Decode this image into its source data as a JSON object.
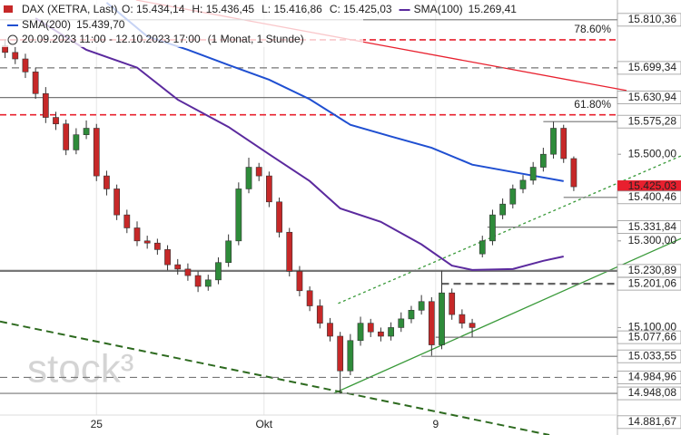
{
  "chart_data": {
    "type": "candlestick",
    "title": "DAX (XETRA, Last)",
    "ohlc_labels": [
      "O: 15.434,14",
      "H: 15.436,45",
      "L: 15.416,86",
      "C: 15.425,03"
    ],
    "period": "20.09.2023 11:00 - 12.10.2023 17:00",
    "period_note": "(1 Monat, 1 Stunde)",
    "watermark": "stock³",
    "xlim": [
      -0.5,
      60.3
    ],
    "xticks": [
      {
        "value": 9,
        "label": "25"
      },
      {
        "value": 25.5,
        "label": "Okt"
      },
      {
        "value": 42.4,
        "label": "9"
      }
    ],
    "ylim": [
      14852,
      15856
    ],
    "yticks": [
      {
        "value": 15100,
        "label": "15.100,00"
      },
      {
        "value": 15300,
        "label": "15.300,00"
      },
      {
        "value": 15500,
        "label": "15.500,00"
      }
    ],
    "up_color": "#2e8b3a",
    "down_color": "#c62828",
    "open": [
      15750,
      15735,
      15720,
      15690,
      15640,
      15585,
      15570,
      15510,
      15545,
      15560,
      15450,
      15420,
      15360,
      15330,
      15300,
      15295,
      15280,
      15245,
      15235,
      15220,
      15195,
      15210,
      15250,
      15300,
      15420,
      15470,
      15450,
      15390,
      15320,
      15230,
      15185,
      15150,
      15110,
      15080,
      15000,
      15070,
      15110,
      15090,
      15080,
      15100,
      15120,
      15140,
      15160,
      15060,
      15180,
      15130,
      15110,
      15270,
      15300,
      15360,
      15385,
      15420,
      15440,
      15470,
      15500,
      15560,
      15490
    ],
    "high": [
      15765,
      15748,
      15732,
      15700,
      15655,
      15598,
      15580,
      15560,
      15578,
      15570,
      15462,
      15430,
      15372,
      15345,
      15312,
      15305,
      15290,
      15258,
      15248,
      15230,
      15222,
      15262,
      15315,
      15435,
      15492,
      15480,
      15460,
      15400,
      15330,
      15242,
      15195,
      15165,
      15122,
      15090,
      15085,
      15125,
      15120,
      15100,
      15112,
      15135,
      15150,
      15175,
      15170,
      15231,
      15190,
      15142,
      15120,
      15312,
      15372,
      15398,
      15430,
      15452,
      15482,
      15515,
      15575,
      15568,
      15495
    ],
    "low": [
      15722,
      15708,
      15676,
      15628,
      15572,
      15556,
      15498,
      15500,
      15535,
      15438,
      15405,
      15348,
      15318,
      15288,
      15282,
      15268,
      15232,
      15222,
      15208,
      15182,
      15185,
      15200,
      15240,
      15290,
      15410,
      15438,
      15378,
      15308,
      15218,
      15172,
      15138,
      15098,
      15068,
      14948,
      14990,
      15058,
      15078,
      15068,
      15070,
      15090,
      15110,
      15130,
      15035,
      15050,
      15118,
      15098,
      15078,
      15262,
      15290,
      15350,
      15375,
      15410,
      15430,
      15460,
      15490,
      15480,
      15415
    ],
    "close": [
      15735,
      15720,
      15690,
      15640,
      15585,
      15570,
      15510,
      15545,
      15560,
      15450,
      15420,
      15360,
      15330,
      15300,
      15295,
      15280,
      15245,
      15235,
      15220,
      15195,
      15210,
      15250,
      15300,
      15420,
      15470,
      15450,
      15390,
      15320,
      15230,
      15185,
      15150,
      15110,
      15080,
      15000,
      15070,
      15110,
      15090,
      15080,
      15100,
      15120,
      15140,
      15160,
      15060,
      15180,
      15130,
      15110,
      15100,
      15300,
      15360,
      15385,
      15420,
      15440,
      15470,
      15500,
      15560,
      15490,
      15425
    ],
    "series": [
      {
        "name": "SMA(100)",
        "value_label": "15.269,41",
        "color": "#5b2a9e",
        "x": [
          3,
          8,
          13,
          17,
          22,
          26,
          30,
          33,
          37,
          41,
          44,
          46,
          50,
          53,
          55
        ],
        "values": [
          15814,
          15741,
          15700,
          15626,
          15563,
          15500,
          15438,
          15375,
          15344,
          15292,
          15243,
          15233,
          15235,
          15254,
          15264
        ]
      },
      {
        "name": "SMA(200)",
        "value_label": "15.439,70",
        "color": "#1f4fd1",
        "x": [
          10,
          14,
          18,
          22,
          26,
          30,
          34,
          38,
          42,
          46,
          50,
          55
        ],
        "values": [
          15850,
          15772,
          15741,
          15706,
          15672,
          15627,
          15568,
          15541,
          15515,
          15476,
          15459,
          15438
        ]
      }
    ],
    "levels": [
      {
        "value": 15810.36,
        "label": "15.810,36",
        "style": "solid",
        "color": "#777777",
        "from": -0.5
      },
      {
        "value": 15764,
        "label": "78.60%",
        "style": "fib",
        "color": "#e8202e",
        "from": -0.5
      },
      {
        "value": 15699.34,
        "label": "15.699,34",
        "style": "dashed",
        "color": "#777777",
        "from": -0.5
      },
      {
        "value": 15630.94,
        "label": "15.630,94",
        "style": "solid",
        "color": "#777777",
        "from": -0.5
      },
      {
        "value": 15591,
        "label": "61.80%",
        "style": "fib",
        "color": "#e8202e",
        "from": -0.5
      },
      {
        "value": 15575.28,
        "label": "15.575,28",
        "style": "solid",
        "color": "#777777",
        "from": 53
      },
      {
        "value": 15425.03,
        "label": "15.425,03",
        "style": "price",
        "color": "#e8202e",
        "from": 60.3
      },
      {
        "value": 15400.46,
        "label": "15.400,46",
        "style": "solid",
        "color": "#777777",
        "from": 55
      },
      {
        "value": 15331.84,
        "label": "15.331,84",
        "style": "solid",
        "color": "#777777",
        "from": 47.5
      },
      {
        "value": 15230.89,
        "label": "15.230,89",
        "style": "thick",
        "color": "#777777",
        "from": -0.5
      },
      {
        "value": 15201.06,
        "label": "15.201,06",
        "style": "thickdash",
        "color": "#666666",
        "from": 43
      },
      {
        "value": 15077.66,
        "label": "15.077,66",
        "style": "solid",
        "color": "#777777",
        "from": 42.4
      },
      {
        "value": 15033.55,
        "label": "15.033,55",
        "style": "solid",
        "color": "#777777",
        "from": 41
      },
      {
        "value": 14984.96,
        "label": "14.984,96",
        "style": "dashed",
        "color": "#777777",
        "from": -0.5
      },
      {
        "value": 14948.08,
        "label": "14.948,08",
        "style": "solid",
        "color": "#777777",
        "from": -0.5
      },
      {
        "value": 14881.67,
        "label": "14.881,67",
        "style": "none",
        "color": "#777777",
        "from": 60.3
      }
    ],
    "trendlines": [
      {
        "x": [
          12.9,
          61.2
        ],
        "y": [
          15856,
          15647
        ],
        "color": "#e8202e",
        "style": "solid"
      },
      {
        "x": [
          32.4,
          66.6
        ],
        "y": [
          14948.6,
          15306
        ],
        "color": "#3a9a3a",
        "style": "solid"
      },
      {
        "x": [
          32.8,
          66.6
        ],
        "y": [
          15155.7,
          15496.6
        ],
        "color": "#3a9a3a",
        "style": "dotted"
      },
      {
        "x": [
          -0.5,
          53.6
        ],
        "y": [
          15113.9,
          14852
        ],
        "color": "#2d6a1f",
        "style": "dashed"
      }
    ]
  }
}
